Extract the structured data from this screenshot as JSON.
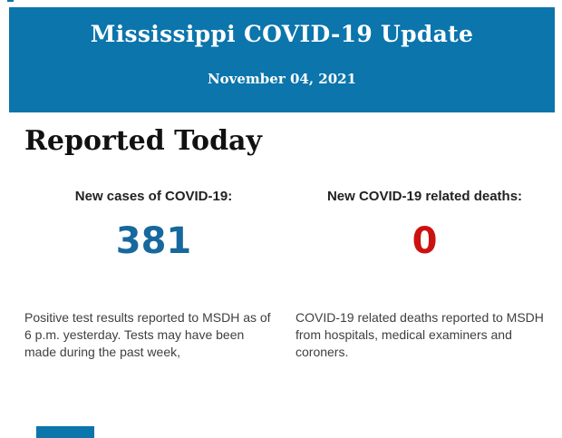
{
  "header": {
    "title": "Mississippi COVID-19 Update",
    "date": "November 04, 2021",
    "bg_color": "#0b75ac",
    "text_color": "#ffffff"
  },
  "section": {
    "title": "Reported Today"
  },
  "stats": [
    {
      "label": "New cases of COVID-19:",
      "value": "381",
      "value_color": "#17689c",
      "description": "Positive test results reported to MSDH as of 6 p.m. yesterday. Tests may have been made during the past week,"
    },
    {
      "label": "New COVID-19 related deaths:",
      "value": "0",
      "value_color": "#cc1111",
      "description": "COVID-19 related deaths reported to MSDH from hospitals, medical examiners and coroners."
    }
  ]
}
